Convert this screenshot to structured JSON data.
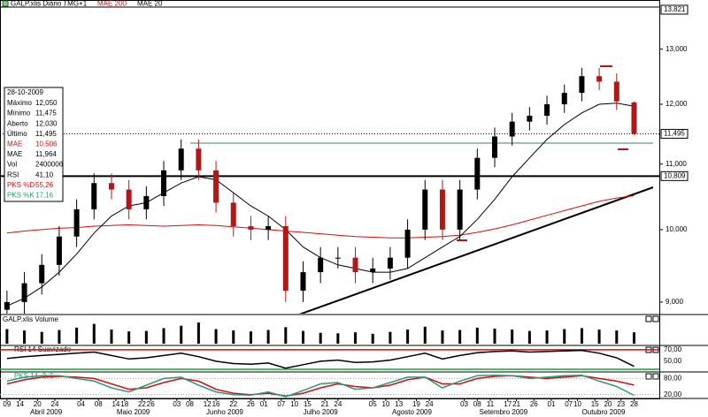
{
  "chart_data": {
    "type": "candlestick",
    "title": "GALP.xlis Diário TMG+1",
    "x": [
      0,
      4,
      8,
      12,
      16,
      20,
      24,
      28,
      32,
      36,
      40,
      44,
      48,
      52,
      56,
      60,
      64,
      68,
      72,
      76,
      80,
      84,
      88,
      92,
      96,
      100,
      104,
      108,
      112,
      116,
      120,
      124,
      128,
      132,
      136,
      140,
      144
    ],
    "open": [
      8900,
      9000,
      9250,
      9500,
      9900,
      10300,
      10700,
      10600,
      10300,
      10500,
      10900,
      11250,
      10900,
      10400,
      10050,
      10000,
      10050,
      9150,
      9400,
      9600,
      9600,
      9400,
      9450,
      9600,
      10000,
      10600,
      10000,
      10600,
      11100,
      11450,
      11700,
      11800,
      12000,
      12200,
      12500,
      12400,
      12030
    ],
    "high": [
      9150,
      9400,
      9650,
      10050,
      10450,
      10850,
      10850,
      10750,
      10650,
      11050,
      11400,
      11400,
      11050,
      10550,
      10200,
      10200,
      10200,
      9550,
      9750,
      9750,
      9750,
      9600,
      9750,
      10150,
      10750,
      10750,
      10750,
      11250,
      11600,
      11850,
      11950,
      12150,
      12350,
      12650,
      12650,
      12550,
      12050
    ],
    "low": [
      8800,
      8850,
      9100,
      9350,
      9750,
      10150,
      10450,
      10150,
      10150,
      10350,
      10750,
      10750,
      10250,
      9900,
      9850,
      9850,
      9000,
      9000,
      9250,
      9450,
      9250,
      9250,
      9300,
      9450,
      9850,
      9850,
      9850,
      10450,
      10950,
      11300,
      11550,
      11650,
      11850,
      12050,
      12250,
      11900,
      11475
    ],
    "close": [
      9000,
      9250,
      9500,
      9900,
      10300,
      10700,
      10600,
      10300,
      10500,
      10900,
      11250,
      10900,
      10400,
      10050,
      10000,
      10050,
      9150,
      9400,
      9600,
      9600,
      9400,
      9450,
      9600,
      10000,
      10600,
      10000,
      10600,
      11100,
      11450,
      11700,
      11800,
      12000,
      12200,
      12500,
      12400,
      12050,
      11495
    ],
    "up_color": "#000000",
    "down_color": "#b01818",
    "series": [
      {
        "name": "MAE 200",
        "color": "#d01010",
        "values": [
          9950,
          9980,
          10000,
          10020,
          10030,
          10050,
          10060,
          10070,
          10060,
          10050,
          10060,
          10070,
          10060,
          10040,
          10020,
          10000,
          9980,
          9960,
          9940,
          9920,
          9900,
          9890,
          9880,
          9880,
          9890,
          9900,
          9920,
          9960,
          10010,
          10070,
          10140,
          10210,
          10280,
          10350,
          10420,
          10470,
          10506
        ]
      },
      {
        "name": "MAE 20",
        "color": "#000000",
        "values": [
          8950,
          9050,
          9200,
          9400,
          9650,
          9950,
          10200,
          10350,
          10400,
          10550,
          10700,
          10800,
          10750,
          10550,
          10350,
          10200,
          10000,
          9750,
          9600,
          9500,
          9450,
          9400,
          9400,
          9450,
          9600,
          9750,
          9900,
          10150,
          10450,
          10800,
          11100,
          11400,
          11650,
          11850,
          12000,
          12020,
          11964
        ]
      }
    ],
    "xlim": [
      -1.6,
      149.8
    ],
    "xticks": [
      {
        "value": 0,
        "label": "09"
      },
      {
        "value": 3,
        "label": "14"
      },
      {
        "value": 7,
        "label": "20"
      },
      {
        "value": 11,
        "label": "24"
      },
      {
        "value": 17,
        "label": "04"
      },
      {
        "value": 21,
        "label": "08"
      },
      {
        "value": 25,
        "label": "14"
      },
      {
        "value": 27,
        "label": "18"
      },
      {
        "value": 31,
        "label": "22"
      },
      {
        "value": 33,
        "label": "26"
      },
      {
        "value": 39,
        "label": "03"
      },
      {
        "value": 42,
        "label": "08"
      },
      {
        "value": 46,
        "label": "12"
      },
      {
        "value": 48,
        "label": "16"
      },
      {
        "value": 52,
        "label": "22"
      },
      {
        "value": 56,
        "label": "26"
      },
      {
        "value": 59,
        "label": "01"
      },
      {
        "value": 63,
        "label": "07"
      },
      {
        "value": 66,
        "label": "10"
      },
      {
        "value": 69,
        "label": "15"
      },
      {
        "value": 73,
        "label": "21"
      },
      {
        "value": 76,
        "label": "24"
      },
      {
        "value": 84,
        "label": "05"
      },
      {
        "value": 87,
        "label": "10"
      },
      {
        "value": 90,
        "label": "13"
      },
      {
        "value": 94,
        "label": "19"
      },
      {
        "value": 97,
        "label": "24"
      },
      {
        "value": 105,
        "label": "03"
      },
      {
        "value": 108,
        "label": "08"
      },
      {
        "value": 111,
        "label": "11"
      },
      {
        "value": 115,
        "label": "17"
      },
      {
        "value": 117,
        "label": "21"
      },
      {
        "value": 121,
        "label": "26"
      },
      {
        "value": 125,
        "label": "01"
      },
      {
        "value": 129,
        "label": "07"
      },
      {
        "value": 131,
        "label": "10"
      },
      {
        "value": 135,
        "label": "15"
      },
      {
        "value": 138,
        "label": "20"
      },
      {
        "value": 141,
        "label": "23"
      },
      {
        "value": 144,
        "label": "28"
      }
    ],
    "months": [
      {
        "value": 9,
        "label": "Abril 2009"
      },
      {
        "value": 29,
        "label": "Maio 2009"
      },
      {
        "value": 50,
        "label": "Junho 2009"
      },
      {
        "value": 72,
        "label": "Julho 2009"
      },
      {
        "value": 93,
        "label": "Agosto 2009"
      },
      {
        "value": 114,
        "label": "Setembro 2009"
      },
      {
        "value": 137,
        "label": "Outubro 2009"
      }
    ],
    "ylim": [
      8850,
      13821
    ],
    "log_y": true,
    "yticks": [
      {
        "value": 13000,
        "label": "13,000"
      },
      {
        "value": 12000,
        "label": "12,000"
      },
      {
        "value": 11000,
        "label": "11,000"
      },
      {
        "value": 10000,
        "label": "10,000"
      },
      {
        "value": 9000,
        "label": "9,000"
      }
    ],
    "reference_lines": [
      {
        "value": 13821,
        "label": "13,821",
        "style": "none"
      },
      {
        "value": 11495,
        "label": "11,495",
        "style": "dotted"
      },
      {
        "value": 10809,
        "label": "10,809",
        "style": "thick"
      }
    ],
    "info": {
      "date": "28-10-2009",
      "rows": [
        {
          "label": "Máximo",
          "value": "12,050",
          "color": "#000000"
        },
        {
          "label": "Mínimo",
          "value": "11,475",
          "color": "#000000"
        },
        {
          "label": "Aberto",
          "value": "12,030",
          "color": "#000000"
        },
        {
          "label": "Último",
          "value": "11,495",
          "color": "#000000"
        },
        {
          "label": "MAE",
          "value": "10,506",
          "color": "#d01010"
        },
        {
          "label": "MAE",
          "value": "11,964",
          "color": "#000000"
        },
        {
          "label": "Vol",
          "value": "2400006",
          "color": "#000000"
        },
        {
          "label": "RSI",
          "value": "41,10",
          "color": "#000000"
        },
        {
          "label": "PKS %D",
          "value": "55,26",
          "color": "#d01010"
        },
        {
          "label": "PKS %K",
          "value": "17,16",
          "color": "#2a9a7a"
        }
      ]
    },
    "volume": {
      "title": "GALP.xlis Volume",
      "color": "#000000",
      "values": [
        3100000,
        2800000,
        2500000,
        2900000,
        3400000,
        4200000,
        3000000,
        2600000,
        2700000,
        3300000,
        3800000,
        4500000,
        3100000,
        2800000,
        2600000,
        2900000,
        3500000,
        2700000,
        2300000,
        2200000,
        2400000,
        2100000,
        2500000,
        3000000,
        3600000,
        2800000,
        2900000,
        3400000,
        3200000,
        3000000,
        2700000,
        2800000,
        3100000,
        3300000,
        3000000,
        2800000,
        2400006
      ]
    },
    "rsi": {
      "title": "RSI 14 Suavizado",
      "color": "#000000",
      "ylim": [
        33,
        76
      ],
      "yticks": [
        {
          "value": 70,
          "label": "70,00"
        },
        {
          "value": 50,
          "label": "50,00"
        }
      ],
      "values": [
        55,
        58,
        60,
        62,
        64,
        66,
        60,
        54,
        56,
        60,
        64,
        58,
        50,
        46,
        45,
        47,
        38,
        44,
        50,
        52,
        48,
        49,
        52,
        58,
        64,
        54,
        60,
        65,
        67,
        68,
        66,
        67,
        68,
        69,
        64,
        56,
        41.1
      ]
    },
    "pks": {
      "title": "PKS 14, 3, 5",
      "ylim": [
        9,
        101
      ],
      "yticks": [
        {
          "value": 80,
          "label": "80,00"
        },
        {
          "value": 20,
          "label": "20,00"
        }
      ],
      "series": [
        {
          "color": "#d01010",
          "values": [
            60,
            75,
            85,
            88,
            85,
            80,
            60,
            40,
            45,
            65,
            80,
            70,
            40,
            25,
            20,
            25,
            15,
            25,
            45,
            60,
            50,
            45,
            55,
            75,
            85,
            60,
            60,
            80,
            88,
            90,
            85,
            80,
            85,
            90,
            80,
            70,
            55.26
          ]
        },
        {
          "color": "#2a9a7a",
          "values": [
            70,
            85,
            90,
            90,
            80,
            70,
            45,
            30,
            55,
            80,
            85,
            55,
            30,
            20,
            18,
            30,
            12,
            35,
            60,
            65,
            40,
            45,
            65,
            85,
            85,
            45,
            70,
            90,
            92,
            90,
            80,
            85,
            90,
            92,
            70,
            50,
            17.16
          ]
        }
      ]
    }
  }
}
